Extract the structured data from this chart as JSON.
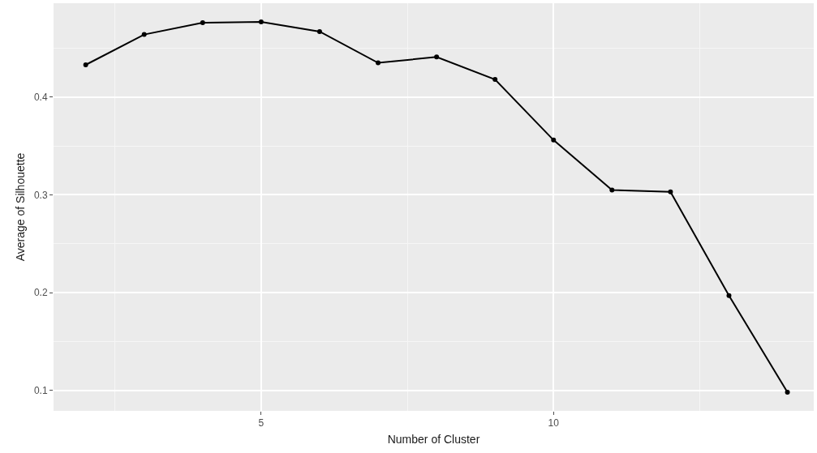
{
  "chart_data": {
    "type": "line",
    "xlabel": "Number of Cluster",
    "ylabel": "Average of Silhouette",
    "x": [
      2,
      3,
      4,
      5,
      6,
      7,
      8,
      9,
      10,
      11,
      12,
      13,
      14
    ],
    "series": [
      {
        "color": "#000000",
        "values": [
          0.433,
          0.464,
          0.476,
          0.477,
          0.467,
          0.435,
          0.441,
          0.418,
          0.356,
          0.305,
          0.303,
          0.197,
          0.098
        ]
      }
    ],
    "xlim": [
      1.45,
      14.45
    ],
    "xticks": [
      5,
      10
    ],
    "ylim": [
      0.079,
      0.496
    ],
    "yticks": [
      0.1,
      0.2,
      0.3,
      0.4
    ],
    "grid": true,
    "marker": "circle",
    "line_style": "solid"
  }
}
